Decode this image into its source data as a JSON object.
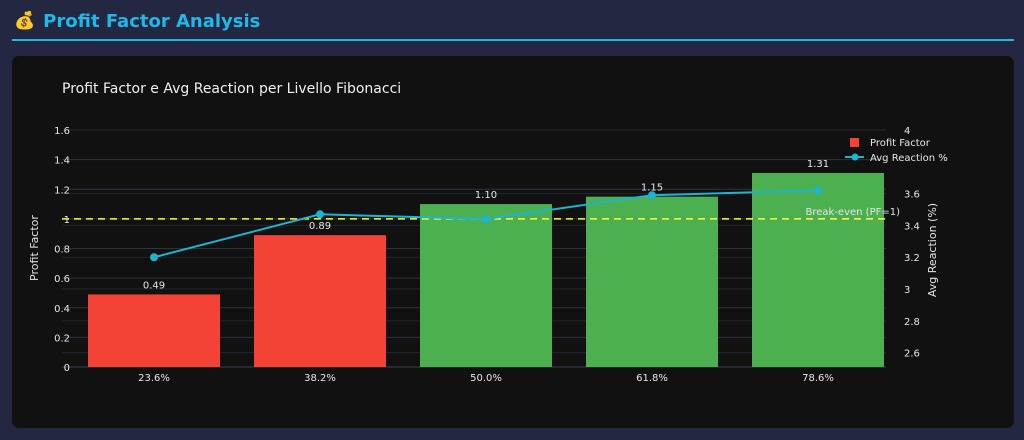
{
  "header": {
    "icon": "money-bag-icon",
    "icon_glyph": "💰",
    "title": "Profit Factor Analysis"
  },
  "colors": {
    "accent": "#1fb8e8",
    "loss_bar": "#f44336",
    "profit_bar": "#4caf50",
    "line": "#1cb5d0",
    "breakeven": "#ffff33"
  },
  "chart_data": {
    "type": "bar",
    "title": "Profit Factor e Avg Reaction per Livello Fibonacci",
    "categories": [
      "23.6%",
      "38.2%",
      "50.0%",
      "61.8%",
      "78.6%"
    ],
    "series": [
      {
        "name": "Profit Factor",
        "type": "bar",
        "axis": "left",
        "values": [
          0.49,
          0.89,
          1.1,
          1.15,
          1.31
        ],
        "labels": [
          "0.49",
          "0.89",
          "1.10",
          "1.15",
          "1.31"
        ]
      },
      {
        "name": "Avg Reaction %",
        "type": "line",
        "axis": "right",
        "values": [
          3.2,
          3.47,
          3.44,
          3.59,
          3.62
        ]
      }
    ],
    "ylabel": "Profit Factor",
    "y2label": "Avg Reaction (%)",
    "ylim": [
      0,
      1.6
    ],
    "y2lim": [
      2.51,
      4.0
    ],
    "yticks": [
      "0",
      "0.2",
      "0.4",
      "0.6",
      "0.8",
      "1",
      "1.2",
      "1.4",
      "1.6"
    ],
    "y2ticks": [
      "2.6",
      "2.8",
      "3",
      "3.2",
      "3.4",
      "3.6",
      "4"
    ],
    "reference_line": {
      "value": 1,
      "label": "Break-even (PF=1)",
      "style": "dashed"
    },
    "legend": "top-right",
    "grid": true
  }
}
